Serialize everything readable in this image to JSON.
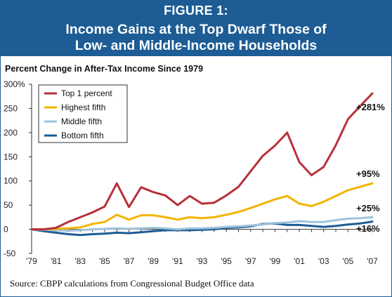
{
  "figure_label": "FIGURE 1:",
  "title_line1": "Income Gains at the Top Dwarf Those of",
  "title_line2": "Low- and Middle-Income Households",
  "source": "Source: CBPP calculations from Congressional Budget Office data",
  "colors": {
    "header_bg": "#1d5c94",
    "top1": "#b8303a",
    "highest_fifth": "#f4b400",
    "middle_fifth": "#9fc3dc",
    "bottom_fifth": "#1d5c94"
  },
  "chart_data": {
    "type": "line",
    "title": "Percent Change in After-Tax Income Since 1979",
    "xlabel": "",
    "ylabel": "",
    "x": [
      1979,
      1980,
      1981,
      1982,
      1983,
      1984,
      1985,
      1986,
      1987,
      1988,
      1989,
      1990,
      1991,
      1992,
      1993,
      1994,
      1995,
      1996,
      1997,
      1998,
      1999,
      2000,
      2001,
      2002,
      2003,
      2004,
      2005,
      2006,
      2007
    ],
    "x_tick_values": [
      1979,
      1981,
      1983,
      1985,
      1987,
      1989,
      1991,
      1993,
      1995,
      1997,
      1999,
      2001,
      2003,
      2005,
      2007
    ],
    "x_tick_labels": [
      "'79",
      "'81",
      "'83",
      "'85",
      "'87",
      "'89",
      "'91",
      "'93",
      "'95",
      "'97",
      "'99",
      "'01",
      "'03",
      "'05",
      "'07"
    ],
    "y_tick_values": [
      300,
      250,
      200,
      150,
      100,
      50,
      0,
      -50
    ],
    "y_tick_labels": [
      "300%",
      "250",
      "200",
      "150",
      "100",
      "50",
      "0",
      "-50"
    ],
    "ylim": [
      -50,
      300
    ],
    "grid": false,
    "legend_position": "top-left",
    "series": [
      {
        "name": "Top 1 percent",
        "color": "#b8303a",
        "values": [
          0,
          0,
          3,
          15,
          25,
          35,
          47,
          95,
          46,
          87,
          77,
          70,
          50,
          69,
          53,
          55,
          70,
          88,
          120,
          152,
          173,
          200,
          139,
          112,
          129,
          174,
          228,
          255,
          281
        ],
        "end_label": "+281%"
      },
      {
        "name": "Highest fifth",
        "color": "#f4b400",
        "values": [
          0,
          0,
          1,
          2,
          4,
          11,
          15,
          30,
          20,
          29,
          29,
          25,
          20,
          25,
          23,
          25,
          30,
          36,
          44,
          53,
          62,
          69,
          53,
          48,
          57,
          69,
          81,
          88,
          95
        ],
        "end_label": "+95%"
      },
      {
        "name": "Middle fifth",
        "color": "#9fc3dc",
        "values": [
          0,
          -1,
          -2,
          -3,
          -2,
          0,
          1,
          2,
          1,
          2,
          3,
          2,
          0,
          2,
          2,
          3,
          5,
          6,
          8,
          10,
          13,
          14,
          17,
          15,
          15,
          19,
          22,
          23,
          25
        ],
        "end_label": "+25%"
      },
      {
        "name": "Bottom fifth",
        "color": "#1d5c94",
        "values": [
          0,
          -4,
          -7,
          -10,
          -12,
          -10,
          -9,
          -7,
          -8,
          -6,
          -4,
          -2,
          -2,
          -2,
          -1,
          0,
          3,
          4,
          6,
          11,
          12,
          9,
          9,
          7,
          5,
          7,
          10,
          12,
          16
        ],
        "end_label": "+16%"
      }
    ]
  }
}
